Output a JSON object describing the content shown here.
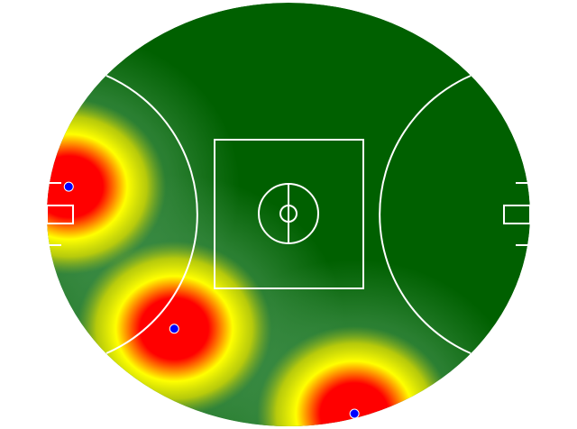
{
  "chart_data": {
    "type": "heatmap",
    "title": "",
    "xlabel": "",
    "ylabel": "",
    "field": "AFL oval",
    "colors": {
      "field": "#006000",
      "low": "#3c8c46",
      "mid": "#ffff00",
      "high": "#ff0000",
      "marker": "#0000ff",
      "lines": "#ffffff"
    },
    "points": [
      {
        "x": -75,
        "y": 9.5
      },
      {
        "x": -39,
        "y": -39
      },
      {
        "x": 22.5,
        "y": -68
      }
    ]
  }
}
